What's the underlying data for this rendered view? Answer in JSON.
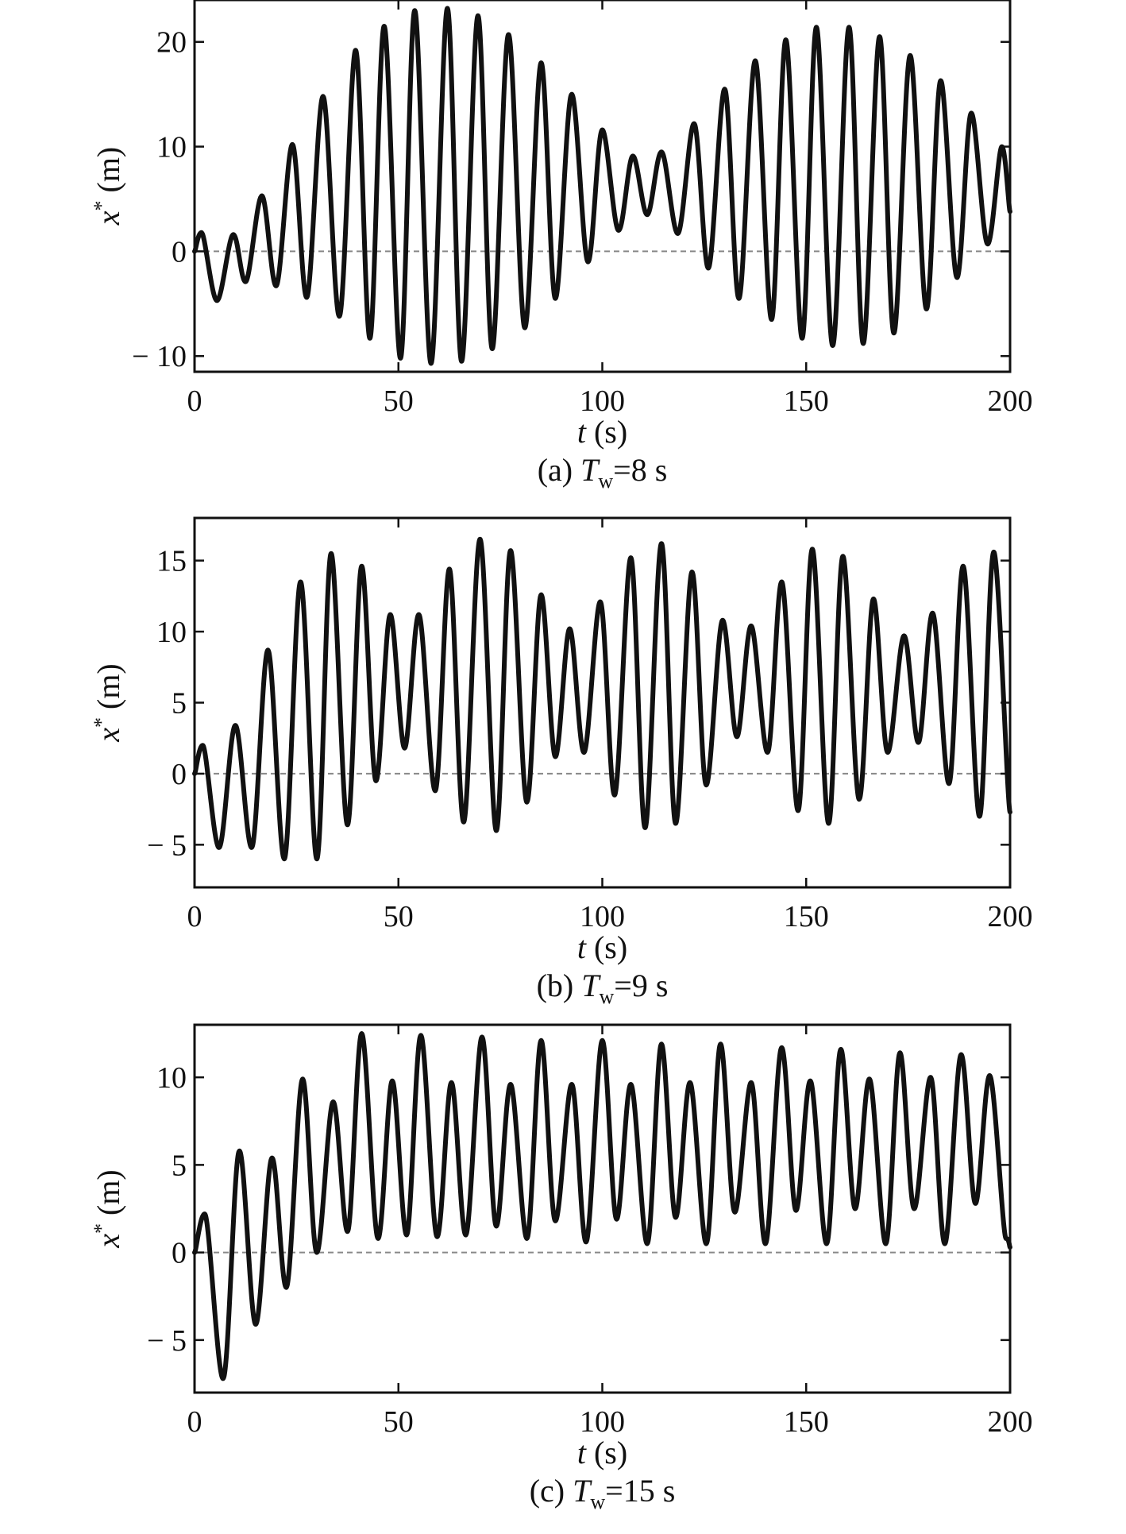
{
  "chart_data": [
    {
      "type": "line",
      "caption": {
        "prefix": "(a) ",
        "var": "T",
        "sub": "w",
        "suffix": "=8 s"
      },
      "xlabel": {
        "var": "t",
        "unit": " (s)"
      },
      "ylabel": {
        "var": "x",
        "sup": "*",
        "unit": " (m)"
      },
      "xlim": [
        0,
        200
      ],
      "ylim": [
        -11.5,
        24
      ],
      "xticks": [
        0,
        50,
        100,
        150,
        200
      ],
      "yticks": [
        -10,
        0,
        10,
        20
      ],
      "ytick_labels": [
        "− 10",
        "0",
        "10",
        "20"
      ],
      "xtick_labels": [
        "0",
        "50",
        "100",
        "150",
        "200"
      ],
      "zero_line": true,
      "grid": false,
      "series": [
        {
          "color": "#111111",
          "points": [
            [
              0,
              0
            ],
            [
              1.7,
              1.8
            ],
            [
              5.5,
              -4.7
            ],
            [
              9.5,
              1.6
            ],
            [
              12.5,
              -2.9
            ],
            [
              16.5,
              5.3
            ],
            [
              20,
              -3.3
            ],
            [
              24,
              10.2
            ],
            [
              27.5,
              -4.4
            ],
            [
              31.5,
              14.8
            ],
            [
              35.5,
              -6.2
            ],
            [
              39.5,
              19.2
            ],
            [
              43,
              -8.3
            ],
            [
              46.5,
              21.5
            ],
            [
              50.5,
              -10.2
            ],
            [
              54,
              23
            ],
            [
              58,
              -10.7
            ],
            [
              62,
              23.2
            ],
            [
              65.5,
              -10.5
            ],
            [
              69.5,
              22.5
            ],
            [
              73,
              -9.3
            ],
            [
              77,
              20.7
            ],
            [
              81,
              -7.3
            ],
            [
              85,
              18
            ],
            [
              88.5,
              -4.5
            ],
            [
              92.5,
              15
            ],
            [
              96.5,
              -1
            ],
            [
              100,
              11.6
            ],
            [
              104,
              2
            ],
            [
              107.5,
              9.1
            ],
            [
              111,
              3.5
            ],
            [
              114.5,
              9.5
            ],
            [
              118.5,
              1.7
            ],
            [
              122.5,
              12.2
            ],
            [
              126,
              -1.6
            ],
            [
              130,
              15.5
            ],
            [
              133.5,
              -4.5
            ],
            [
              137.5,
              18.2
            ],
            [
              141.5,
              -6.5
            ],
            [
              145,
              20.2
            ],
            [
              149,
              -8.3
            ],
            [
              152.5,
              21.4
            ],
            [
              156.5,
              -9
            ],
            [
              160.5,
              21.4
            ],
            [
              164,
              -8.8
            ],
            [
              168,
              20.5
            ],
            [
              171.5,
              -7.8
            ],
            [
              175.5,
              18.7
            ],
            [
              179.5,
              -5.5
            ],
            [
              183,
              16.3
            ],
            [
              187,
              -2.5
            ],
            [
              190.5,
              13.2
            ],
            [
              194.5,
              0.7
            ],
            [
              198,
              10
            ],
            [
              200,
              3.8
            ]
          ]
        }
      ]
    },
    {
      "type": "line",
      "caption": {
        "prefix": "(b) ",
        "var": "T",
        "sub": "w",
        "suffix": "=9 s"
      },
      "xlabel": {
        "var": "t",
        "unit": " (s)"
      },
      "ylabel": {
        "var": "x",
        "sup": "*",
        "unit": " (m)"
      },
      "xlim": [
        0,
        200
      ],
      "ylim": [
        -8,
        18
      ],
      "xticks": [
        0,
        50,
        100,
        150,
        200
      ],
      "yticks": [
        -5,
        0,
        5,
        10,
        15
      ],
      "ytick_labels": [
        "− 5",
        "0",
        "5",
        "10",
        "15"
      ],
      "xtick_labels": [
        "0",
        "50",
        "100",
        "150",
        "200"
      ],
      "zero_line": true,
      "grid": false,
      "series": [
        {
          "color": "#111111",
          "points": [
            [
              0,
              0
            ],
            [
              2,
              2
            ],
            [
              6,
              -5.2
            ],
            [
              10,
              3.4
            ],
            [
              14,
              -5.2
            ],
            [
              18,
              8.7
            ],
            [
              22,
              -6
            ],
            [
              26,
              13.5
            ],
            [
              30,
              -6
            ],
            [
              33.5,
              15.5
            ],
            [
              37.5,
              -3.6
            ],
            [
              41,
              14.6
            ],
            [
              44.5,
              -0.5
            ],
            [
              48,
              11.2
            ],
            [
              51.5,
              1.8
            ],
            [
              55,
              11.2
            ],
            [
              59,
              -1.2
            ],
            [
              62.5,
              14.4
            ],
            [
              66,
              -3.4
            ],
            [
              70,
              16.5
            ],
            [
              74,
              -4
            ],
            [
              77.5,
              15.7
            ],
            [
              81.5,
              -2
            ],
            [
              85,
              12.6
            ],
            [
              88.5,
              1.2
            ],
            [
              92,
              10.2
            ],
            [
              95.5,
              1.5
            ],
            [
              99.5,
              12.1
            ],
            [
              103,
              -1.5
            ],
            [
              107,
              15.2
            ],
            [
              110.5,
              -3.8
            ],
            [
              114.5,
              16.2
            ],
            [
              118,
              -3.5
            ],
            [
              122,
              14.2
            ],
            [
              125.5,
              -0.8
            ],
            [
              129.5,
              10.8
            ],
            [
              133,
              2.6
            ],
            [
              136.5,
              10.4
            ],
            [
              140.5,
              1.5
            ],
            [
              144,
              13.5
            ],
            [
              148,
              -2.6
            ],
            [
              151.5,
              15.8
            ],
            [
              155.5,
              -3.5
            ],
            [
              159,
              15.3
            ],
            [
              163,
              -1.8
            ],
            [
              166.5,
              12.3
            ],
            [
              170,
              1.5
            ],
            [
              174,
              9.7
            ],
            [
              177.5,
              2.2
            ],
            [
              181,
              11.3
            ],
            [
              185,
              -0.7
            ],
            [
              188.5,
              14.6
            ],
            [
              192.5,
              -3
            ],
            [
              196,
              15.6
            ],
            [
              200,
              -2.7
            ]
          ]
        }
      ]
    },
    {
      "type": "line",
      "caption": {
        "prefix": "(c) ",
        "var": "T",
        "sub": "w",
        "suffix": "=15 s"
      },
      "xlabel": {
        "var": "t",
        "unit": " (s)"
      },
      "ylabel": {
        "var": "x",
        "sup": "*",
        "unit": " (m)"
      },
      "xlim": [
        0,
        200
      ],
      "ylim": [
        -8,
        13
      ],
      "xticks": [
        0,
        50,
        100,
        150,
        200
      ],
      "yticks": [
        -5,
        0,
        5,
        10
      ],
      "ytick_labels": [
        "− 5",
        "0",
        "5",
        "10"
      ],
      "xtick_labels": [
        "0",
        "50",
        "100",
        "150",
        "200"
      ],
      "zero_line": true,
      "grid": false,
      "series": [
        {
          "color": "#111111",
          "points": [
            [
              0,
              0
            ],
            [
              2.5,
              2.2
            ],
            [
              7,
              -7.2
            ],
            [
              11,
              5.8
            ],
            [
              15,
              -4.1
            ],
            [
              19,
              5.4
            ],
            [
              22.5,
              -2
            ],
            [
              26.5,
              9.9
            ],
            [
              30,
              0
            ],
            [
              34,
              8.6
            ],
            [
              37.5,
              1.2
            ],
            [
              41,
              12.5
            ],
            [
              45,
              0.8
            ],
            [
              48.5,
              9.8
            ],
            [
              52,
              1
            ],
            [
              55.5,
              12.4
            ],
            [
              59.5,
              0.9
            ],
            [
              63,
              9.7
            ],
            [
              66.5,
              1
            ],
            [
              70.5,
              12.3
            ],
            [
              74,
              1.5
            ],
            [
              77.5,
              9.6
            ],
            [
              81.5,
              0.8
            ],
            [
              85,
              12.1
            ],
            [
              88.5,
              1.8
            ],
            [
              92.5,
              9.6
            ],
            [
              96,
              0.6
            ],
            [
              100,
              12.1
            ],
            [
              103.5,
              1.9
            ],
            [
              107,
              9.6
            ],
            [
              111,
              0.5
            ],
            [
              114.5,
              11.9
            ],
            [
              118,
              2
            ],
            [
              121.5,
              9.7
            ],
            [
              125.5,
              0.5
            ],
            [
              129,
              11.9
            ],
            [
              132.5,
              2.3
            ],
            [
              136.5,
              9.7
            ],
            [
              140,
              0.5
            ],
            [
              144,
              11.7
            ],
            [
              147.5,
              2.4
            ],
            [
              151,
              9.8
            ],
            [
              155,
              0.5
            ],
            [
              158.5,
              11.6
            ],
            [
              162,
              2.5
            ],
            [
              165.5,
              9.9
            ],
            [
              169.5,
              0.5
            ],
            [
              173,
              11.4
            ],
            [
              176.5,
              2.5
            ],
            [
              180.5,
              10
            ],
            [
              184,
              0.5
            ],
            [
              188,
              11.3
            ],
            [
              191.5,
              2.8
            ],
            [
              195,
              10.1
            ],
            [
              199,
              0.8
            ],
            [
              200,
              0.3
            ]
          ]
        }
      ]
    }
  ]
}
